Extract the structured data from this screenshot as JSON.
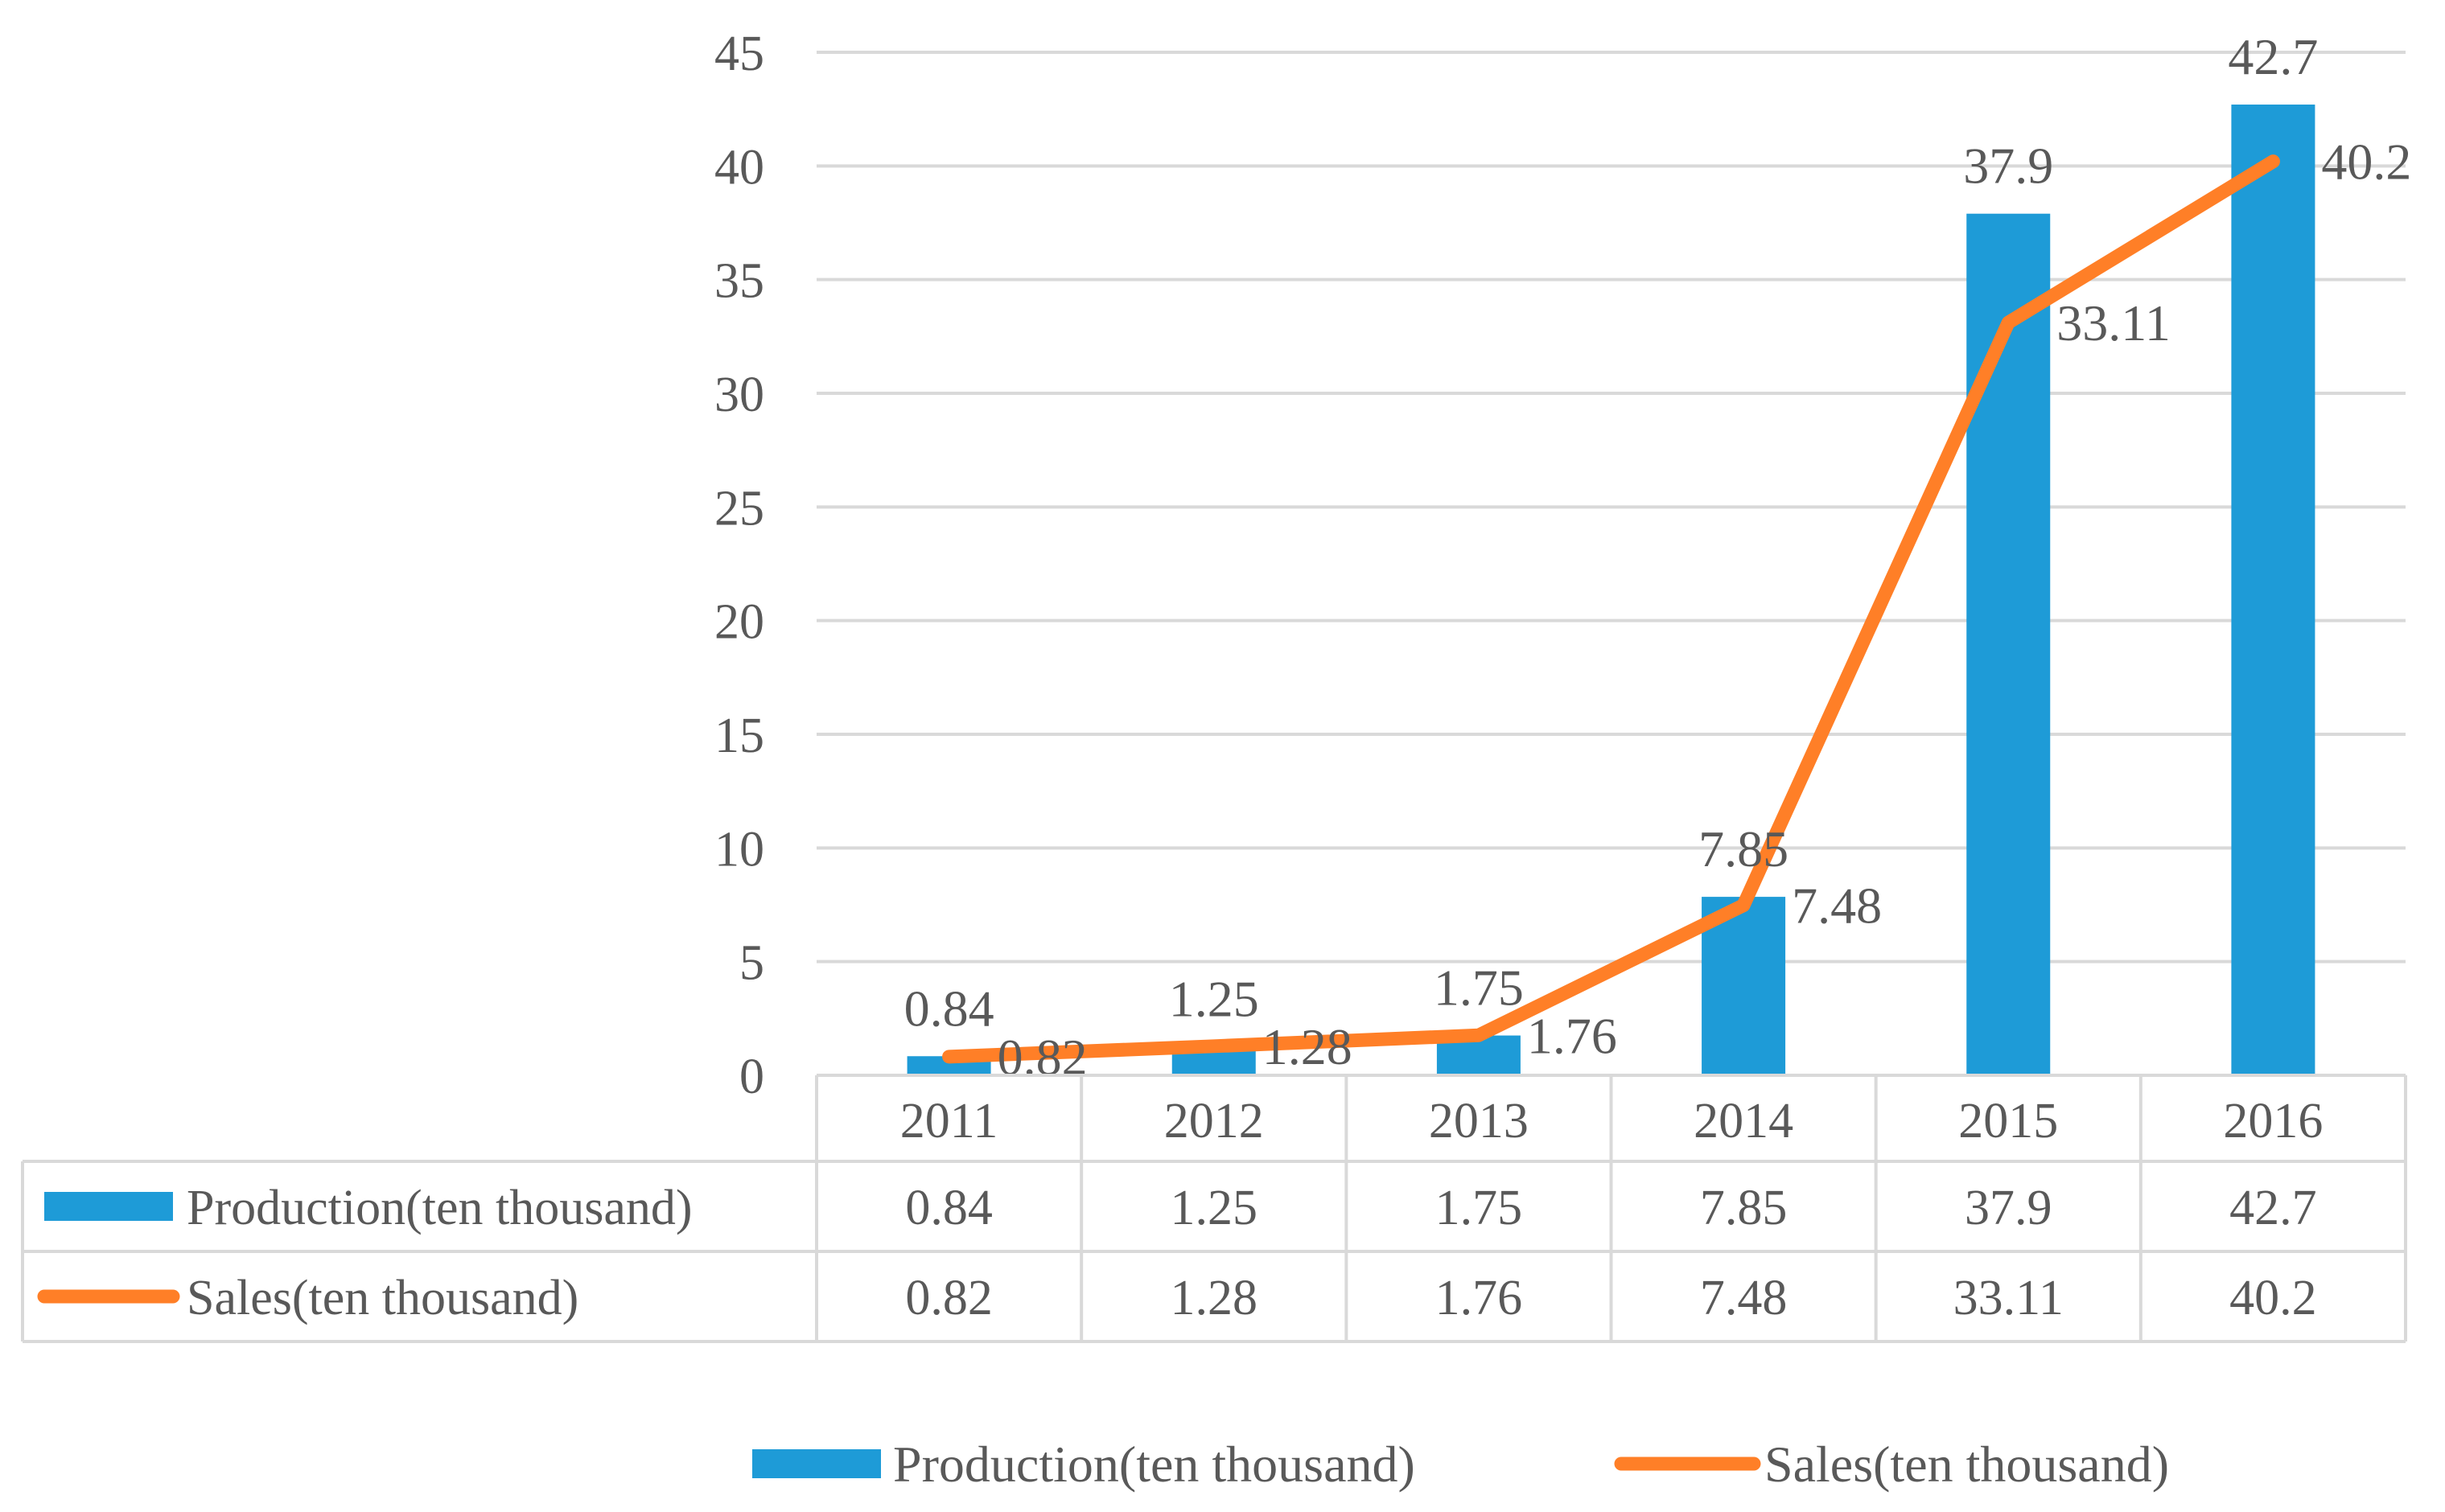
{
  "chart_data": {
    "type": "bar+line",
    "categories": [
      "2011",
      "2012",
      "2013",
      "2014",
      "2015",
      "2016"
    ],
    "series": [
      {
        "name": "Production(ten thousand)",
        "kind": "bar",
        "color": "#1E9BD7",
        "values": [
          0.84,
          1.25,
          1.75,
          7.85,
          37.9,
          42.7
        ],
        "labels": [
          "0.84",
          "1.25",
          "1.75",
          "7.85",
          "37.9",
          "42.7"
        ]
      },
      {
        "name": "Sales(ten thousand)",
        "kind": "line",
        "color": "#FF7F27",
        "values": [
          0.82,
          1.28,
          1.76,
          7.48,
          33.11,
          40.2
        ],
        "labels": [
          "0.82",
          "1.28",
          "1.76",
          "7.48",
          "33.11",
          "40.2"
        ]
      }
    ],
    "ylim": [
      0,
      45
    ],
    "yticks": [
      "0",
      "5",
      "10",
      "15",
      "20",
      "25",
      "30",
      "35",
      "40",
      "45"
    ],
    "grid": true,
    "legend": "bottom-center",
    "data_table": true,
    "gridline_color": "#D9D9D9",
    "text_color": "#595959"
  }
}
